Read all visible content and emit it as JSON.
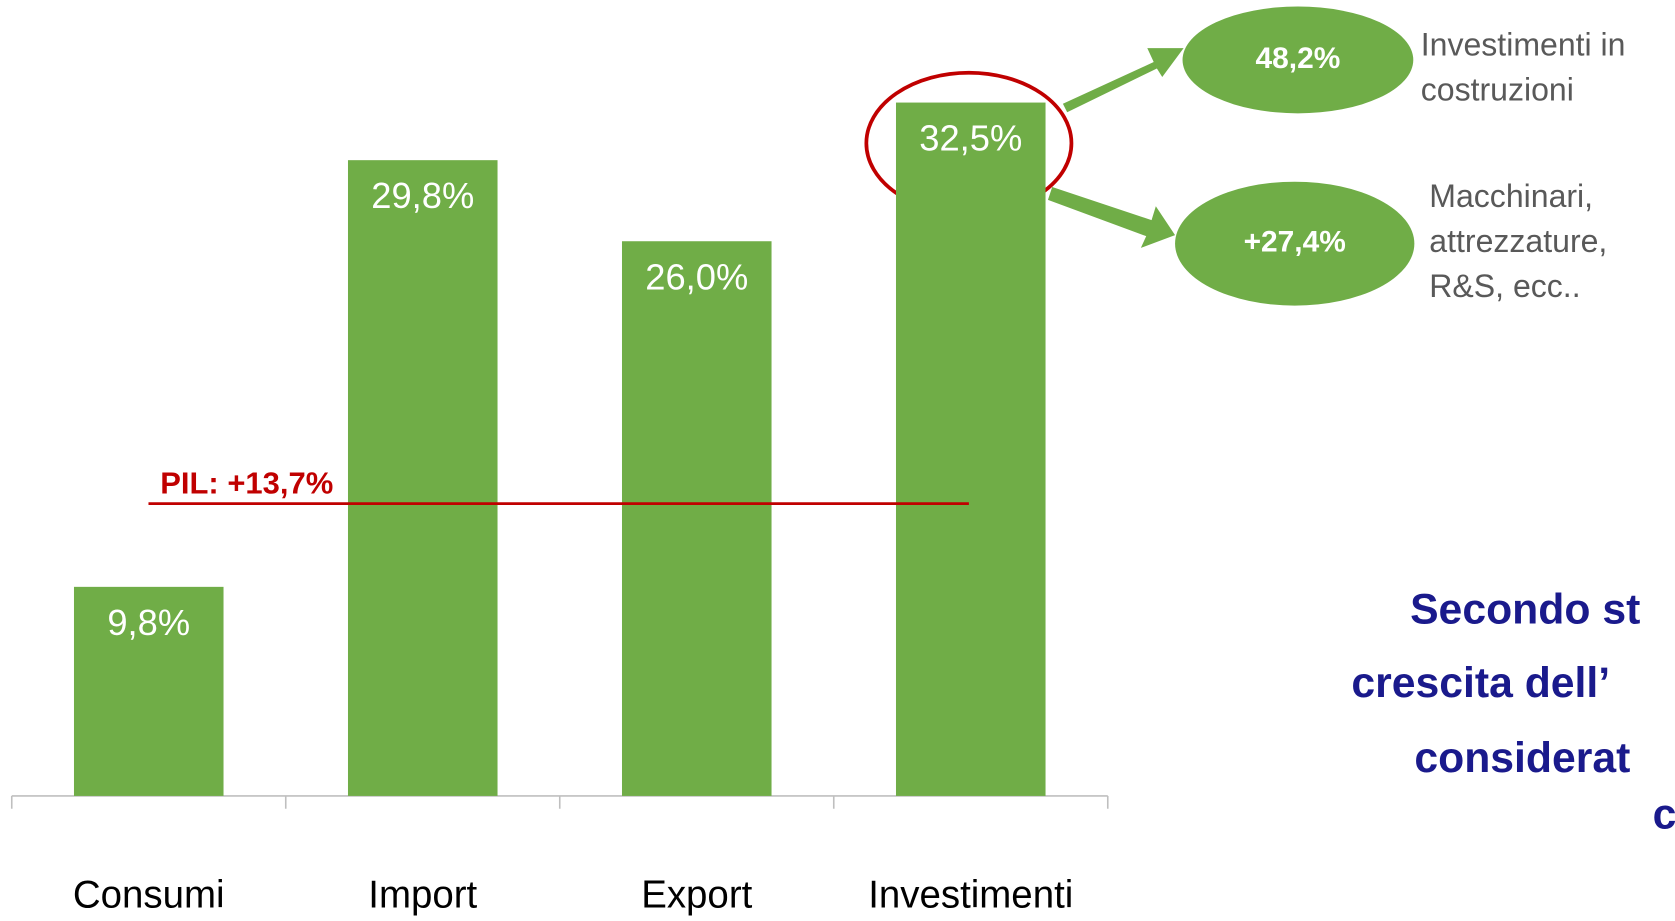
{
  "chart_data": {
    "type": "bar",
    "categories": [
      "Consumi",
      "Import",
      "Export",
      "Investimenti"
    ],
    "values": [
      9.8,
      29.8,
      26.0,
      32.5
    ],
    "value_labels": [
      "9,8%",
      "29,8%",
      "26,0%",
      "32,5%"
    ],
    "color": "#70ad47",
    "ylim": [
      0,
      35
    ],
    "reference_line": {
      "label": "PIL: +13,7%",
      "value": 13.7,
      "color": "#c00000"
    },
    "breakdown": [
      {
        "value": 48.2,
        "label": "48,2%",
        "text": [
          "Investimenti in",
          "costruzioni"
        ]
      },
      {
        "value": 27.4,
        "label": "+27,4%",
        "text": [
          "Macchinari,",
          "attrezzature,",
          "R&S, ecc.."
        ]
      }
    ],
    "side_text": [
      "Secondo st",
      "crescita dell’",
      "considerat",
      "c"
    ]
  }
}
